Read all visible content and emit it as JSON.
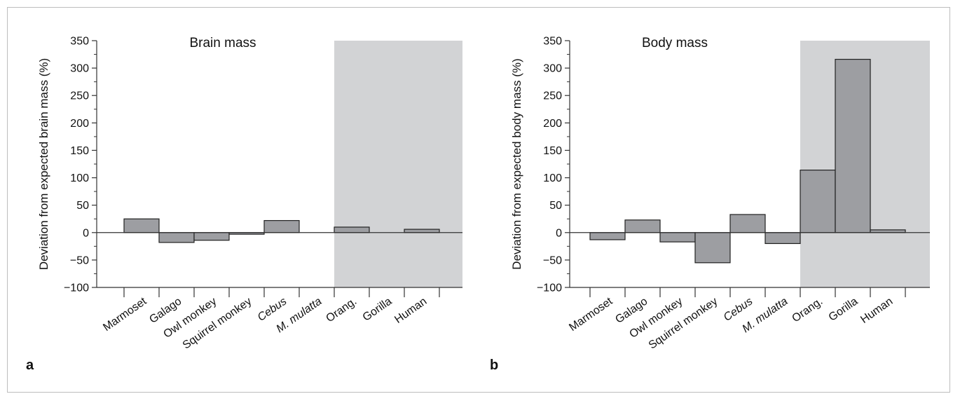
{
  "colors": {
    "bar_fill": "#9d9ea2",
    "bar_stroke": "#222222",
    "shade": "#d2d3d5",
    "axis": "#333333"
  },
  "chart_data": [
    {
      "type": "bar",
      "panel_letter": "a",
      "title": "Brain mass",
      "ylabel": "Deviation from expected brain mass (%)",
      "xlabel": "",
      "ylim": [
        -100,
        350
      ],
      "yticks": [
        -100,
        -50,
        0,
        50,
        100,
        150,
        200,
        250,
        300,
        350
      ],
      "ytick_labels": [
        "−100",
        "−50",
        "0",
        "50",
        "100",
        "150",
        "200",
        "250",
        "300",
        "350"
      ],
      "categories": [
        "Marmoset",
        "Galago",
        "Owl monkey",
        "Squirrel monkey",
        "Cebus",
        "M. mulatta",
        "Orang.",
        "Gorilla",
        "Human"
      ],
      "italic_categories": [
        "Cebus",
        "M. mulatta"
      ],
      "values": [
        25,
        -18,
        -14,
        -3,
        22,
        null,
        10,
        null,
        6
      ],
      "shaded_categories": [
        "Orang.",
        "Gorilla",
        "Human"
      ],
      "grid": false
    },
    {
      "type": "bar",
      "panel_letter": "b",
      "title": "Body mass",
      "ylabel": "Deviation from expected body mass (%)",
      "xlabel": "",
      "ylim": [
        -100,
        350
      ],
      "yticks": [
        -100,
        -50,
        0,
        50,
        100,
        150,
        200,
        250,
        300,
        350
      ],
      "ytick_labels": [
        "−100",
        "−50",
        "0",
        "50",
        "100",
        "150",
        "200",
        "250",
        "300",
        "350"
      ],
      "categories": [
        "Marmoset",
        "Galago",
        "Owl monkey",
        "Squirrel monkey",
        "Cebus",
        "M. mulatta",
        "Orang.",
        "Gorilla",
        "Human"
      ],
      "italic_categories": [
        "Cebus",
        "M. mulatta"
      ],
      "values": [
        -13,
        23,
        -17,
        -55,
        33,
        -20,
        114,
        316,
        5
      ],
      "shaded_categories": [
        "Orang.",
        "Gorilla",
        "Human"
      ],
      "grid": false
    }
  ]
}
